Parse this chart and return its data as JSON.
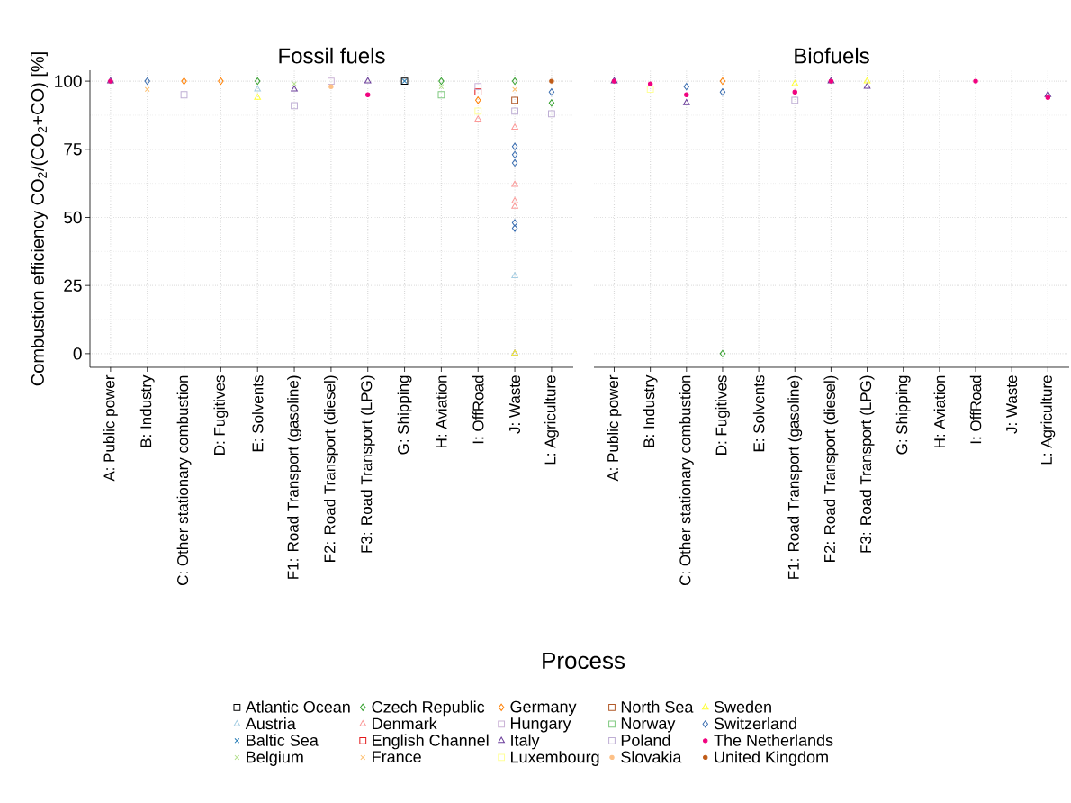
{
  "chart_data": [
    {
      "type": "scatter",
      "title": "Fossil fuels",
      "xlabel": "Process",
      "ylabel": "Combustion efficiency CO$_{2}$/(CO$_{2}$+CO) [%]",
      "categories": [
        "A: Public power",
        "B: Industry",
        "C: Other stationary combustion",
        "D: Fugitives",
        "E: Solvents",
        "F1: Road Transport (gasoline)",
        "F2: Road Transport (diesel)",
        "F3: Road Transport (LPG)",
        "G: Shipping",
        "H: Aviation",
        "I: OffRoad",
        "J: Waste",
        "L: Agriculture"
      ],
      "ylim": [
        -5,
        104
      ],
      "yticks": [
        0,
        25,
        50,
        75,
        100
      ],
      "grid": true,
      "legend": "bottom",
      "series": [
        {
          "name": "Atlantic Ocean",
          "color": "#000000",
          "marker": "square",
          "values": [
            null,
            null,
            null,
            null,
            null,
            null,
            null,
            null,
            100,
            null,
            null,
            null,
            null
          ]
        },
        {
          "name": "Austria",
          "color": "#a6cee3",
          "marker": "triangle",
          "values": [
            null,
            null,
            null,
            null,
            97,
            null,
            null,
            null,
            null,
            null,
            null,
            28.5,
            null
          ]
        },
        {
          "name": "Baltic Sea",
          "color": "#1f78b4",
          "marker": "cross",
          "values": [
            null,
            null,
            null,
            null,
            null,
            null,
            null,
            null,
            100,
            null,
            null,
            null,
            null
          ]
        },
        {
          "name": "Belgium",
          "color": "#b2df8a",
          "marker": "cross",
          "values": [
            null,
            null,
            null,
            null,
            null,
            99,
            null,
            null,
            null,
            98,
            null,
            null,
            null
          ]
        },
        {
          "name": "Czech Republic",
          "color": "#33a02c",
          "marker": "diamond",
          "values": [
            null,
            null,
            null,
            null,
            100,
            null,
            null,
            null,
            null,
            100,
            null,
            100,
            92
          ]
        },
        {
          "name": "Denmark",
          "color": "#fb9a99",
          "marker": "triangle",
          "x": [
            "I: OffRoad",
            "J: Waste",
            "J: Waste",
            "J: Waste",
            "J: Waste"
          ],
          "values": [
            86,
            83,
            62,
            56,
            54
          ]
        },
        {
          "name": "English Channel",
          "color": "#e31a1c",
          "marker": "square",
          "values": [
            null,
            null,
            null,
            null,
            null,
            null,
            null,
            null,
            null,
            null,
            96,
            null,
            null
          ]
        },
        {
          "name": "France",
          "color": "#fdbf6f",
          "marker": "cross",
          "values": [
            null,
            97,
            null,
            null,
            null,
            null,
            null,
            null,
            null,
            null,
            null,
            97,
            null
          ]
        },
        {
          "name": "Germany",
          "color": "#ff7f00",
          "marker": "diamond",
          "values": [
            null,
            null,
            100,
            100,
            null,
            null,
            null,
            null,
            null,
            null,
            93,
            null,
            null
          ]
        },
        {
          "name": "Hungary",
          "color": "#cab2d6",
          "marker": "square",
          "values": [
            null,
            null,
            null,
            null,
            null,
            null,
            100,
            null,
            null,
            null,
            98,
            null,
            null
          ]
        },
        {
          "name": "Italy",
          "color": "#6a3d9a",
          "marker": "triangle",
          "values": [
            100,
            null,
            null,
            null,
            null,
            97,
            null,
            100,
            null,
            null,
            null,
            0,
            null
          ]
        },
        {
          "name": "Luxembourg",
          "color": "#ffff99",
          "marker": "square",
          "values": [
            null,
            null,
            null,
            null,
            null,
            null,
            null,
            null,
            null,
            null,
            89,
            null,
            null
          ]
        },
        {
          "name": "North Sea",
          "color": "#b15928",
          "marker": "square",
          "values": [
            null,
            null,
            null,
            null,
            null,
            null,
            null,
            null,
            null,
            null,
            null,
            93,
            null
          ]
        },
        {
          "name": "Norway",
          "color": "#7fc97f",
          "marker": "square",
          "values": [
            null,
            null,
            null,
            null,
            null,
            null,
            null,
            null,
            null,
            95,
            null,
            null,
            null
          ]
        },
        {
          "name": "Poland",
          "color": "#beaed4",
          "marker": "square",
          "values": [
            null,
            null,
            95,
            null,
            null,
            91,
            null,
            null,
            null,
            null,
            null,
            89,
            88
          ]
        },
        {
          "name": "Slovakia",
          "color": "#fdc086",
          "marker": "circle",
          "values": [
            null,
            null,
            null,
            null,
            null,
            null,
            98,
            null,
            null,
            null,
            null,
            null,
            null
          ]
        },
        {
          "name": "Sweden",
          "color": "#ffff33",
          "marker": "triangle",
          "values": [
            null,
            null,
            null,
            null,
            94,
            null,
            null,
            null,
            null,
            null,
            null,
            0,
            null
          ]
        },
        {
          "name": "Switzerland",
          "color": "#386cb0",
          "marker": "diamond",
          "x": [
            "B: Industry",
            "J: Waste",
            "J: Waste",
            "J: Waste",
            "J: Waste",
            "J: Waste",
            "L: Agriculture"
          ],
          "values": [
            100,
            76,
            73,
            70,
            48,
            46,
            96
          ]
        },
        {
          "name": "The Netherlands",
          "color": "#f0027f",
          "marker": "circle",
          "values": [
            100,
            null,
            null,
            null,
            null,
            null,
            null,
            95,
            null,
            null,
            null,
            null,
            null
          ]
        },
        {
          "name": "United Kingdom",
          "color": "#bf5b17",
          "marker": "circle",
          "values": [
            null,
            null,
            null,
            null,
            null,
            null,
            null,
            null,
            null,
            null,
            null,
            null,
            100
          ]
        }
      ]
    },
    {
      "type": "scatter",
      "title": "Biofuels",
      "categories": [
        "A: Public power",
        "B: Industry",
        "C: Other stationary combustion",
        "D: Fugitives",
        "E: Solvents",
        "F1: Road Transport (gasoline)",
        "F2: Road Transport (diesel)",
        "F3: Road Transport (LPG)",
        "G: Shipping",
        "H: Aviation",
        "I: OffRoad",
        "J: Waste",
        "L: Agriculture"
      ],
      "ylim": [
        -5,
        104
      ],
      "yticks": [
        0,
        25,
        50,
        75,
        100
      ],
      "grid": true,
      "tick_labels": "x",
      "series": [
        {
          "color": "#33a02c",
          "marker": "diamond",
          "values": [
            null,
            null,
            null,
            0,
            null,
            null,
            null,
            null,
            null,
            null,
            null,
            null,
            null
          ]
        },
        {
          "color": "#ff7f00",
          "marker": "diamond",
          "values": [
            null,
            null,
            null,
            100,
            null,
            null,
            null,
            null,
            null,
            null,
            null,
            null,
            null
          ]
        },
        {
          "color": "#6a3d9a",
          "marker": "triangle",
          "values": [
            100,
            null,
            92,
            null,
            null,
            null,
            100,
            98,
            null,
            null,
            null,
            null,
            95
          ]
        },
        {
          "color": "#ffff99",
          "marker": "square",
          "values": [
            null,
            97,
            null,
            null,
            null,
            null,
            null,
            null,
            null,
            null,
            null,
            null,
            null
          ]
        },
        {
          "color": "#beaed4",
          "marker": "square",
          "values": [
            null,
            null,
            null,
            null,
            null,
            93,
            null,
            null,
            null,
            null,
            null,
            null,
            null
          ]
        },
        {
          "color": "#ffff33",
          "marker": "triangle",
          "values": [
            null,
            null,
            null,
            null,
            null,
            99,
            null,
            100,
            null,
            null,
            null,
            null,
            null
          ]
        },
        {
          "color": "#386cb0",
          "marker": "diamond",
          "values": [
            null,
            null,
            98,
            96,
            null,
            null,
            null,
            null,
            null,
            null,
            null,
            null,
            null
          ]
        },
        {
          "color": "#f0027f",
          "marker": "circle",
          "values": [
            100,
            99,
            95,
            null,
            null,
            96,
            100,
            null,
            null,
            null,
            100,
            null,
            94
          ]
        }
      ]
    }
  ]
}
